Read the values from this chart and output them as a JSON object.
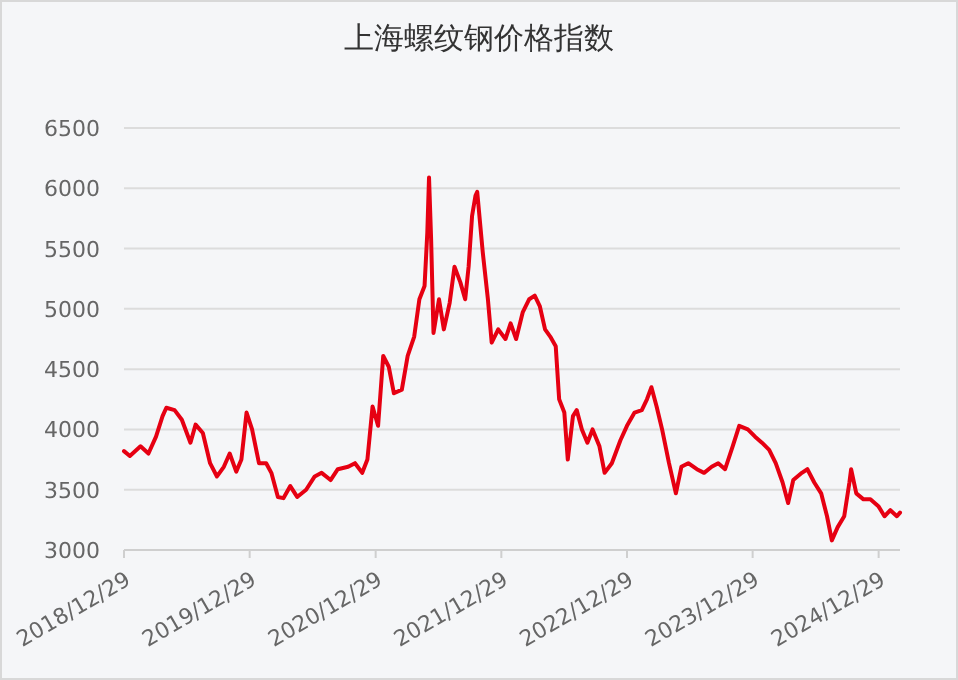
{
  "chart_data": {
    "type": "line",
    "title": "上海螺纹钢价格指数",
    "x": [
      "2018-12-29",
      "2019-01-15",
      "2019-02-15",
      "2019-03-10",
      "2019-04-01",
      "2019-04-20",
      "2019-05-01",
      "2019-05-25",
      "2019-06-15",
      "2019-07-10",
      "2019-07-25",
      "2019-08-15",
      "2019-09-05",
      "2019-09-25",
      "2019-10-15",
      "2019-11-01",
      "2019-11-20",
      "2019-12-05",
      "2019-12-20",
      "2020-01-05",
      "2020-01-25",
      "2020-02-15",
      "2020-03-01",
      "2020-03-20",
      "2020-04-05",
      "2020-04-25",
      "2020-05-15",
      "2020-06-10",
      "2020-07-05",
      "2020-07-25",
      "2020-08-20",
      "2020-09-10",
      "2020-10-10",
      "2020-10-30",
      "2020-11-20",
      "2020-12-05",
      "2020-12-20",
      "2021-01-05",
      "2021-01-20",
      "2021-02-05",
      "2021-02-20",
      "2021-03-15",
      "2021-04-01",
      "2021-04-20",
      "2021-05-05",
      "2021-05-20",
      "2021-05-28",
      "2021-06-02",
      "2021-06-08",
      "2021-06-15",
      "2021-07-01",
      "2021-07-15",
      "2021-08-01",
      "2021-08-15",
      "2021-09-01",
      "2021-09-15",
      "2021-09-25",
      "2021-10-05",
      "2021-10-15",
      "2021-10-20",
      "2021-11-05",
      "2021-11-20",
      "2021-12-01",
      "2021-12-20",
      "2022-01-10",
      "2022-01-25",
      "2022-02-10",
      "2022-03-01",
      "2022-03-20",
      "2022-04-05",
      "2022-04-20",
      "2022-05-05",
      "2022-05-20",
      "2022-06-05",
      "2022-06-15",
      "2022-06-30",
      "2022-07-10",
      "2022-07-25",
      "2022-08-05",
      "2022-08-20",
      "2022-09-05",
      "2022-09-20",
      "2022-10-10",
      "2022-10-25",
      "2022-11-15",
      "2022-12-10",
      "2022-12-29",
      "2023-01-20",
      "2023-02-10",
      "2023-02-25",
      "2023-03-10",
      "2023-03-25",
      "2023-04-10",
      "2023-04-30",
      "2023-05-20",
      "2023-06-05",
      "2023-06-25",
      "2023-07-20",
      "2023-08-10",
      "2023-09-01",
      "2023-09-20",
      "2023-10-10",
      "2023-11-01",
      "2023-11-20",
      "2023-12-15",
      "2024-01-05",
      "2024-01-25",
      "2024-02-15",
      "2024-03-05",
      "2024-03-25",
      "2024-04-10",
      "2024-04-25",
      "2024-05-20",
      "2024-06-05",
      "2024-06-25",
      "2024-07-15",
      "2024-08-01",
      "2024-08-15",
      "2024-09-01",
      "2024-09-20",
      "2024-10-05",
      "2024-10-10",
      "2024-10-25",
      "2024-11-15",
      "2024-12-05",
      "2024-12-29",
      "2025-01-15",
      "2025-02-01",
      "2025-02-20",
      "2025-03-01"
    ],
    "series": [
      {
        "color": "#e60012",
        "values": [
          3820,
          3780,
          3860,
          3800,
          3940,
          4110,
          4180,
          4160,
          4080,
          3890,
          4040,
          3970,
          3720,
          3610,
          3690,
          3800,
          3650,
          3750,
          4140,
          4000,
          3720,
          3720,
          3640,
          3440,
          3430,
          3530,
          3440,
          3500,
          3610,
          3640,
          3580,
          3670,
          3690,
          3720,
          3640,
          3750,
          4190,
          4030,
          4610,
          4520,
          4300,
          4330,
          4610,
          4770,
          5080,
          5190,
          5630,
          6090,
          5580,
          4800,
          5080,
          4830,
          5050,
          5350,
          5220,
          5080,
          5350,
          5770,
          5940,
          5970,
          5470,
          5080,
          4720,
          4830,
          4750,
          4880,
          4750,
          4970,
          5080,
          5110,
          5020,
          4830,
          4770,
          4690,
          4250,
          4140,
          3750,
          4110,
          4160,
          4000,
          3890,
          4000,
          3860,
          3640,
          3720,
          3910,
          4030,
          4140,
          4160,
          4250,
          4350,
          4190,
          4000,
          3720,
          3470,
          3690,
          3720,
          3670,
          3640,
          3690,
          3720,
          3670,
          3860,
          4030,
          4000,
          3940,
          3890,
          3830,
          3720,
          3560,
          3390,
          3580,
          3640,
          3670,
          3560,
          3470,
          3280,
          3080,
          3190,
          3280,
          3560,
          3670,
          3470,
          3420,
          3420,
          3360,
          3280,
          3330,
          3280,
          3310
        ]
      }
    ],
    "xlim": [
      "2018-12-29",
      "2025-03-01"
    ],
    "xticks": [
      {
        "value": "2018-12-29",
        "label": "2018/12/29"
      },
      {
        "value": "2019-12-29",
        "label": "2019/12/29"
      },
      {
        "value": "2020-12-29",
        "label": "2020/12/29"
      },
      {
        "value": "2021-12-29",
        "label": "2021/12/29"
      },
      {
        "value": "2022-12-29",
        "label": "2022/12/29"
      },
      {
        "value": "2023-12-29",
        "label": "2023/12/29"
      },
      {
        "value": "2024-12-29",
        "label": "2024/12/29"
      }
    ],
    "ylim": [
      3000,
      6500
    ],
    "yticks": [
      3000,
      3500,
      4000,
      4500,
      5000,
      5500,
      6000,
      6500
    ],
    "grid": "y"
  }
}
